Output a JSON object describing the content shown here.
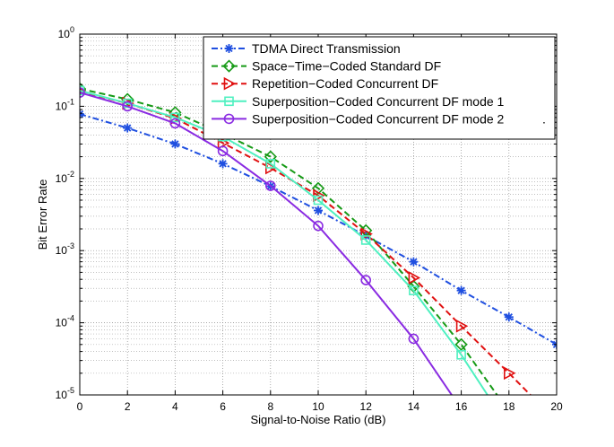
{
  "chart_data": {
    "type": "line",
    "title": "",
    "xlabel": "Signal-to-Noise Ratio (dB)",
    "ylabel": "Bit Error Rate",
    "xlim": [
      0,
      20
    ],
    "ylim": [
      1e-05,
      1
    ],
    "yscale": "log",
    "grid": true,
    "legend_position": "top-right",
    "x_ticks": [
      "0",
      "2",
      "4",
      "6",
      "8",
      "10",
      "12",
      "14",
      "16",
      "18",
      "20"
    ],
    "y_ticks": [
      {
        "base": "10",
        "exp": "0"
      },
      {
        "base": "10",
        "exp": "-1"
      },
      {
        "base": "10",
        "exp": "-2"
      },
      {
        "base": "10",
        "exp": "-3"
      },
      {
        "base": "10",
        "exp": "-4"
      },
      {
        "base": "10",
        "exp": "-5"
      }
    ],
    "series": [
      {
        "name": "TDMA Direct Transmission",
        "color": "#1f4fe0",
        "dash": "dashdot",
        "marker": "star",
        "x": [
          0,
          2,
          4,
          6,
          8,
          10,
          12,
          14,
          16,
          18,
          20
        ],
        "values": [
          0.078,
          0.05,
          0.03,
          0.016,
          0.0078,
          0.0036,
          0.0016,
          0.0007,
          0.00028,
          0.00012,
          5e-05
        ]
      },
      {
        "name": "Space−Time−Coded Standard DF",
        "color": "#169a16",
        "dash": "dashed",
        "marker": "diamond",
        "x": [
          0,
          2,
          4,
          6,
          8,
          10,
          12,
          14,
          16,
          17.5
        ],
        "values": [
          0.175,
          0.125,
          0.082,
          0.042,
          0.02,
          0.0073,
          0.0019,
          0.00032,
          5e-05,
          1e-05
        ]
      },
      {
        "name": "Repetition−Coded Concurrent DF",
        "color": "#e01010",
        "dash": "dashed",
        "marker": "triangle-right",
        "x": [
          0,
          2,
          4,
          6,
          8,
          10,
          12,
          14,
          16,
          18,
          18.9
        ],
        "values": [
          0.16,
          0.11,
          0.068,
          0.031,
          0.014,
          0.0058,
          0.0017,
          0.00042,
          9e-05,
          2e-05,
          1e-05
        ]
      },
      {
        "name": "Superposition−Coded Concurrent DF mode 1",
        "color": "#4ff0c0",
        "dash": "solid",
        "marker": "square",
        "x": [
          0,
          2,
          4,
          6,
          8,
          10,
          12,
          14,
          16,
          17.1
        ],
        "values": [
          0.165,
          0.11,
          0.07,
          0.038,
          0.016,
          0.005,
          0.0014,
          0.00028,
          3.6e-05,
          1e-05
        ]
      },
      {
        "name": "Superposition−Coded Concurrent DF mode 2",
        "color": "#8a2be2",
        "dash": "solid",
        "marker": "circle",
        "x": [
          0,
          2,
          4,
          6,
          8,
          10,
          12,
          14,
          15.6
        ],
        "values": [
          0.155,
          0.1,
          0.058,
          0.024,
          0.0079,
          0.0022,
          0.00039,
          6e-05,
          1e-05
        ]
      }
    ],
    "legend_suffix": "."
  }
}
